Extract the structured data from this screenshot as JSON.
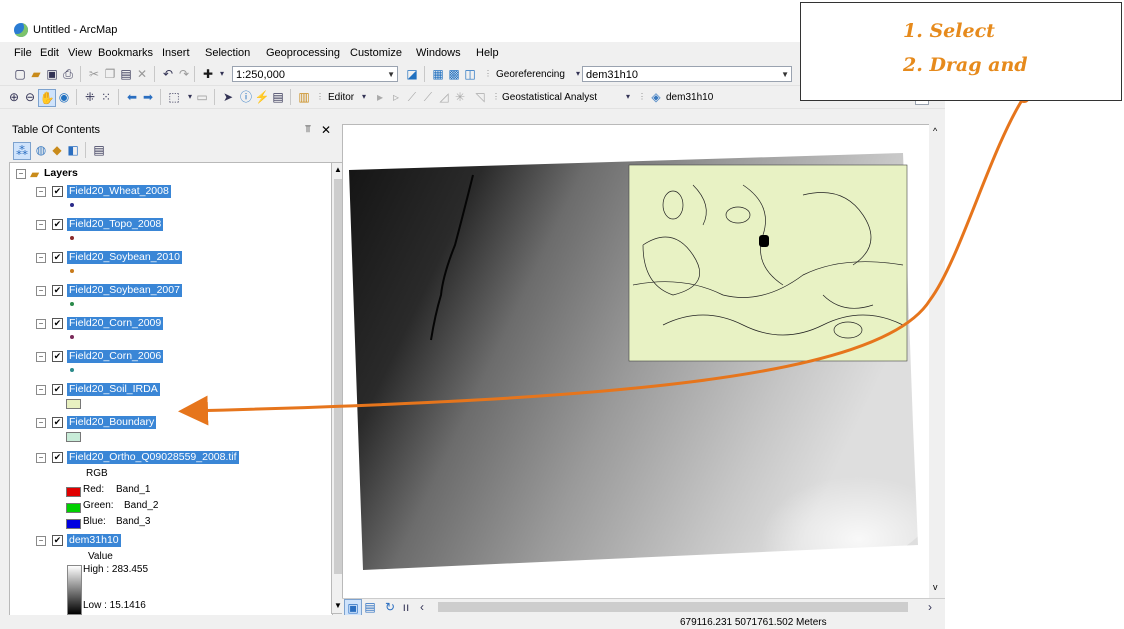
{
  "window": {
    "title": "Untitled - ArcMap"
  },
  "menu": [
    "File",
    "Edit",
    "View",
    "Bookmarks",
    "Insert",
    "Selection",
    "Geoprocessing",
    "Customize",
    "Windows",
    "Help"
  ],
  "toolbar": {
    "scale": "1:250,000",
    "georeferencing_label": "Georeferencing",
    "georeferencing_layer": "dem31h10",
    "editor_label": "Editor",
    "geostatistical_label": "Geostatistical Analyst",
    "geostatistical_layer": "dem31h10"
  },
  "toc": {
    "title": "Table Of Contents",
    "root": "Layers",
    "layers": [
      {
        "name": "Field20_Wheat_2008",
        "symbol": "#2b2b8a"
      },
      {
        "name": "Field20_Topo_2008",
        "symbol": "#8a2b2b"
      },
      {
        "name": "Field20_Soybean_2010",
        "symbol": "#c87a1a"
      },
      {
        "name": "Field20_Soybean_2007",
        "symbol": "#2b8a4a"
      },
      {
        "name": "Field20_Corn_2009",
        "symbol": "#7a2b5a"
      },
      {
        "name": "Field20_Corn_2006",
        "symbol": "#2b8a8a"
      },
      {
        "name": "Field20_Soil_IRDA",
        "symbol": "#e8f0c0"
      },
      {
        "name": "Field20_Boundary",
        "symbol": "#c8ecd8"
      }
    ],
    "ortho": {
      "name": "Field20_Ortho_Q09028559_2008.tif",
      "rgb_label": "RGB",
      "bands": [
        {
          "label": "Red:",
          "band": "Band_1",
          "color": "#e00000"
        },
        {
          "label": "Green:",
          "band": "Band_2",
          "color": "#00d000"
        },
        {
          "label": "Blue:",
          "band": "Band_3",
          "color": "#0000e0"
        }
      ]
    },
    "dem": {
      "name": "dem31h10",
      "value_label": "Value",
      "high": "High : 283.455",
      "low": "Low : 15.1416"
    }
  },
  "status": {
    "coordinates": "679116.231  5071761.502 Meters"
  },
  "callout": {
    "step1": "1.   Select",
    "step2": "2.   Drag and"
  },
  "colors": {
    "accent": "#e6751c",
    "selection": "#3a86d6",
    "soil": "#e8f2c4"
  }
}
